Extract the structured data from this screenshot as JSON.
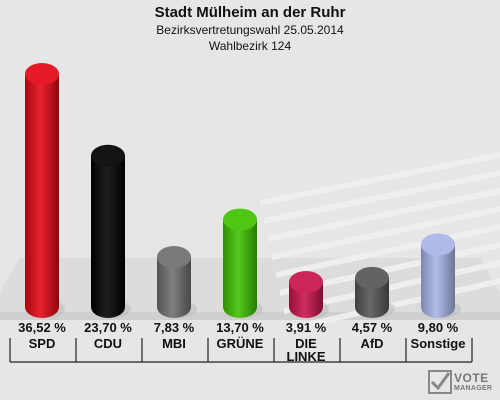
{
  "header": {
    "title": "Stadt Mülheim an der Ruhr",
    "subtitle": "Bezirksvertretungswahl 25.05.2014",
    "district": "Wahlbezirk 124"
  },
  "chart_data": {
    "type": "bar",
    "categories": [
      "SPD",
      "CDU",
      "MBI",
      "GRÜNE",
      "DIE LINKE",
      "AfD",
      "Sonstige"
    ],
    "values": [
      36.52,
      23.7,
      7.83,
      13.7,
      3.91,
      4.57,
      9.8
    ],
    "value_labels": [
      "36,52 %",
      "23,70 %",
      "7,83 %",
      "13,70 %",
      "3,91 %",
      "4,57 %",
      "9,80 %"
    ],
    "colors": [
      "#e30613",
      "#000000",
      "#6e6e6e",
      "#3ec100",
      "#c8124a",
      "#555555",
      "#a8b4e6"
    ],
    "title": "Stadt Mülheim an der Ruhr",
    "ylim": [
      0,
      36.52
    ],
    "grid": false,
    "legend": "none"
  },
  "logo": {
    "line1": "VOTE",
    "line2": "MANAGER"
  }
}
